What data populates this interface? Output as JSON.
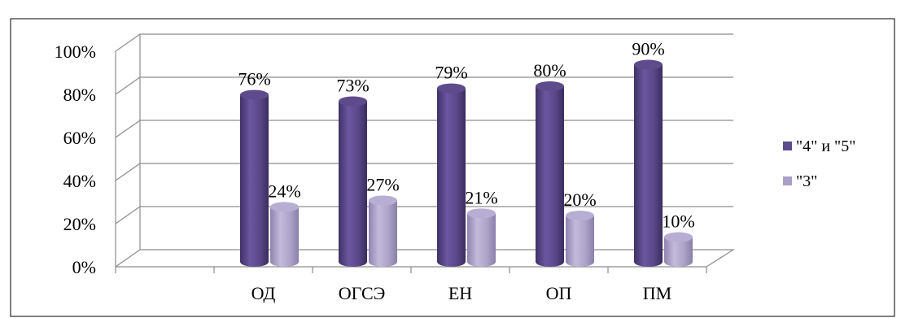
{
  "chart_data": {
    "type": "bar",
    "title": "",
    "categories": [
      "ОД",
      "ОГСЭ",
      "ЕН",
      "ОП",
      "ПМ"
    ],
    "series": [
      {
        "name": "\"4\" и \"5\"",
        "values": [
          76,
          73,
          79,
          80,
          90
        ],
        "color": "#5e4b8b"
      },
      {
        "name": "\"3\"",
        "values": [
          24,
          27,
          21,
          20,
          10
        ],
        "color": "#aa9fc6"
      }
    ],
    "value_format": "percent",
    "yticks": [
      "0%",
      "20%",
      "40%",
      "60%",
      "80%",
      "100%"
    ],
    "ylim": [
      0,
      100
    ],
    "grid": true,
    "legend_position": "right",
    "xlabel": "",
    "ylabel": ""
  }
}
